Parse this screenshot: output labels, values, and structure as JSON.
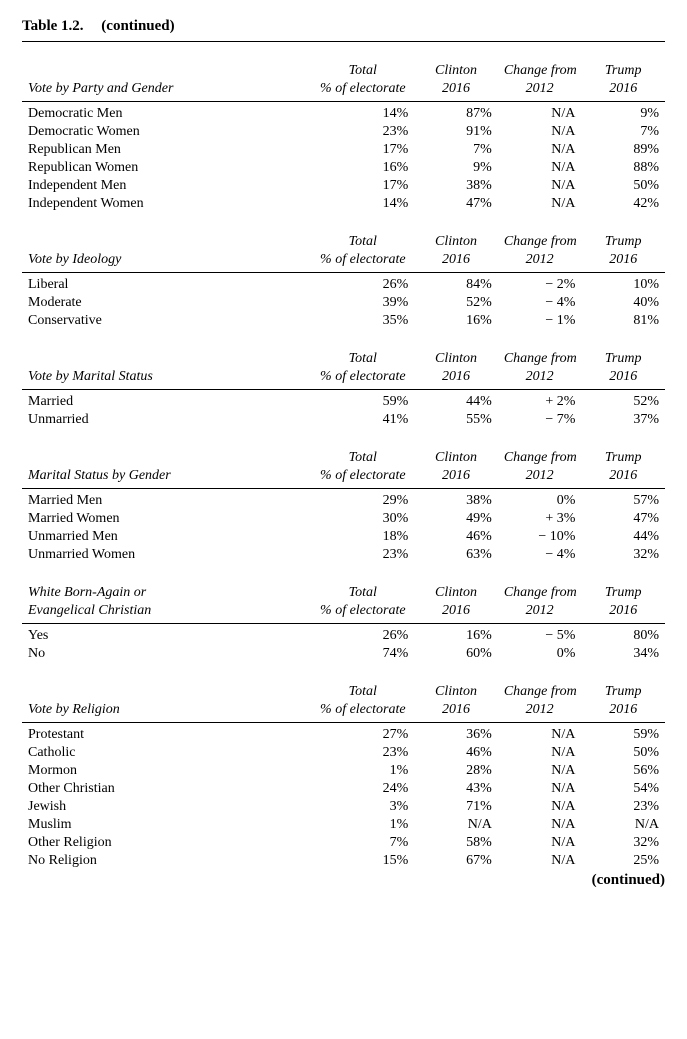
{
  "table_title": "Table 1.2.",
  "continued_top": "(continued)",
  "continued_bottom": "(continued)",
  "header_toplines": [
    "Total",
    "Clinton",
    "Change from",
    "Trump"
  ],
  "header_bottomlines": [
    "% of electorate",
    "2016",
    "2012",
    "2016"
  ],
  "sections": [
    {
      "heading": "Vote by Party and Gender",
      "rows": [
        {
          "label": "Democratic Men",
          "total": "14%",
          "clinton": "87%",
          "change": "N/A",
          "trump": "9%"
        },
        {
          "label": "Democratic Women",
          "total": "23%",
          "clinton": "91%",
          "change": "N/A",
          "trump": "7%"
        },
        {
          "label": "Republican Men",
          "total": "17%",
          "clinton": "7%",
          "change": "N/A",
          "trump": "89%"
        },
        {
          "label": "Republican Women",
          "total": "16%",
          "clinton": "9%",
          "change": "N/A",
          "trump": "88%"
        },
        {
          "label": "Independent Men",
          "total": "17%",
          "clinton": "38%",
          "change": "N/A",
          "trump": "50%"
        },
        {
          "label": "Independent Women",
          "total": "14%",
          "clinton": "47%",
          "change": "N/A",
          "trump": "42%"
        }
      ]
    },
    {
      "heading": "Vote by Ideology",
      "rows": [
        {
          "label": "Liberal",
          "total": "26%",
          "clinton": "84%",
          "change": {
            "sign": "neg",
            "text": "2%"
          },
          "trump": "10%"
        },
        {
          "label": "Moderate",
          "total": "39%",
          "clinton": "52%",
          "change": {
            "sign": "neg",
            "text": "4%"
          },
          "trump": "40%"
        },
        {
          "label": "Conservative",
          "total": "35%",
          "clinton": "16%",
          "change": {
            "sign": "neg",
            "text": "1%"
          },
          "trump": "81%"
        }
      ]
    },
    {
      "heading": "Vote by Marital Status",
      "rows": [
        {
          "label": "Married",
          "total": "59%",
          "clinton": "44%",
          "change": {
            "sign": "pos",
            "text": "2%"
          },
          "trump": "52%"
        },
        {
          "label": "Unmarried",
          "total": "41%",
          "clinton": "55%",
          "change": {
            "sign": "neg",
            "text": "7%"
          },
          "trump": "37%"
        }
      ]
    },
    {
      "heading": "Marital Status by Gender",
      "rows": [
        {
          "label": "Married Men",
          "total": "29%",
          "clinton": "38%",
          "change": "0%",
          "trump": "57%"
        },
        {
          "label": "Married Women",
          "total": "30%",
          "clinton": "49%",
          "change": {
            "sign": "pos",
            "text": "3%"
          },
          "trump": "47%"
        },
        {
          "label": "Unmarried Men",
          "total": "18%",
          "clinton": "46%",
          "change": {
            "sign": "neg",
            "text": "10%"
          },
          "trump": "44%"
        },
        {
          "label": "Unmarried Women",
          "total": "23%",
          "clinton": "63%",
          "change": {
            "sign": "neg",
            "text": "4%"
          },
          "trump": "32%"
        }
      ]
    },
    {
      "heading": "White Born-Again or Evangelical Christian",
      "heading_two_line": [
        "White Born-Again or",
        "Evangelical Christian"
      ],
      "rows": [
        {
          "label": "Yes",
          "total": "26%",
          "clinton": "16%",
          "change": {
            "sign": "neg",
            "text": "5%"
          },
          "trump": "80%"
        },
        {
          "label": "No",
          "total": "74%",
          "clinton": "60%",
          "change": "0%",
          "trump": "34%"
        }
      ]
    },
    {
      "heading": "Vote by Religion",
      "rows": [
        {
          "label": "Protestant",
          "total": "27%",
          "clinton": "36%",
          "change": "N/A",
          "trump": "59%"
        },
        {
          "label": "Catholic",
          "total": "23%",
          "clinton": "46%",
          "change": "N/A",
          "trump": "50%"
        },
        {
          "label": "Mormon",
          "total": "1%",
          "clinton": "28%",
          "change": "N/A",
          "trump": "56%"
        },
        {
          "label": "Other Christian",
          "total": "24%",
          "clinton": "43%",
          "change": "N/A",
          "trump": "54%"
        },
        {
          "label": "Jewish",
          "total": "3%",
          "clinton": "71%",
          "change": "N/A",
          "trump": "23%"
        },
        {
          "label": "Muslim",
          "total": "1%",
          "clinton": "N/A",
          "change": "N/A",
          "trump": "N/A"
        },
        {
          "label": "Other Religion",
          "total": "7%",
          "clinton": "58%",
          "change": "N/A",
          "trump": "32%"
        },
        {
          "label": "No Religion",
          "total": "15%",
          "clinton": "67%",
          "change": "N/A",
          "trump": "25%"
        }
      ]
    }
  ]
}
